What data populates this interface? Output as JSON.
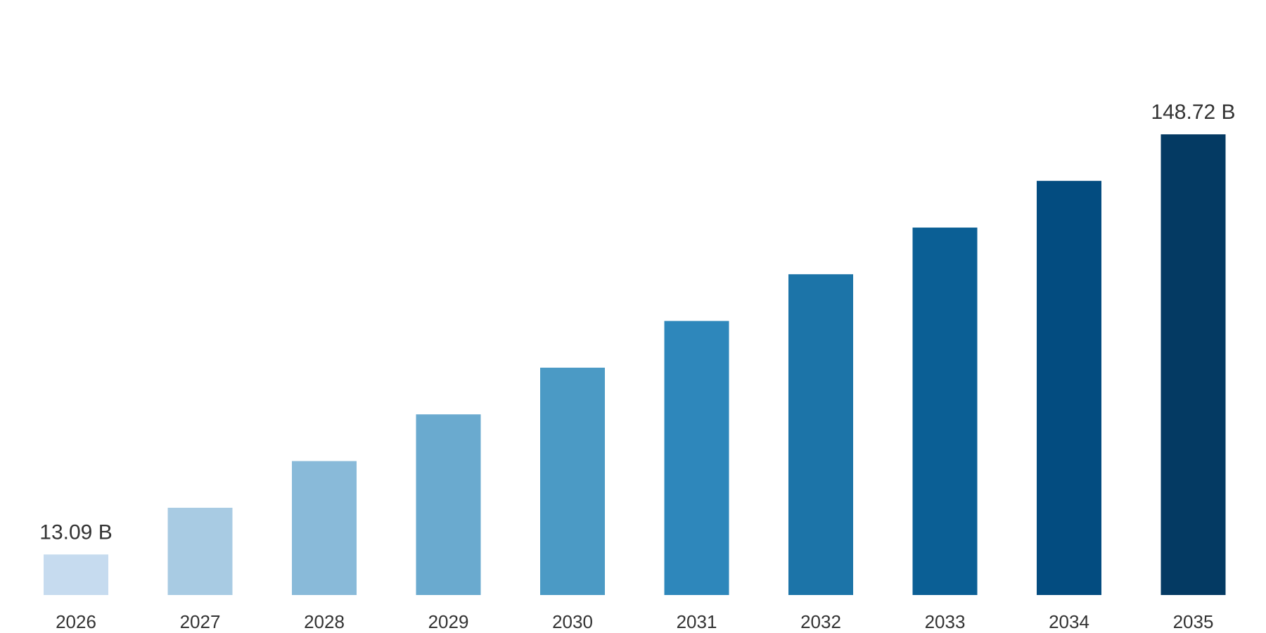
{
  "chart_data": {
    "type": "bar",
    "categories": [
      "2026",
      "2027",
      "2028",
      "2029",
      "2030",
      "2031",
      "2032",
      "2033",
      "2034",
      "2035"
    ],
    "values": [
      13.09,
      28.17,
      43.24,
      58.32,
      73.39,
      88.47,
      103.55,
      118.62,
      133.7,
      148.72
    ],
    "data_labels": [
      {
        "index": 0,
        "text": "13.09 B"
      },
      {
        "index": 9,
        "text": "148.72 B"
      }
    ],
    "ylim": [
      0,
      170
    ],
    "grid": false,
    "legend": "none",
    "bar_colors": [
      "#c6dbef",
      "#a8cbe3",
      "#89bad9",
      "#6aaacf",
      "#4b9ac5",
      "#2e87bb",
      "#1c74a8",
      "#0b5f95",
      "#034c80",
      "#043a63"
    ],
    "text_color": "#333333"
  }
}
